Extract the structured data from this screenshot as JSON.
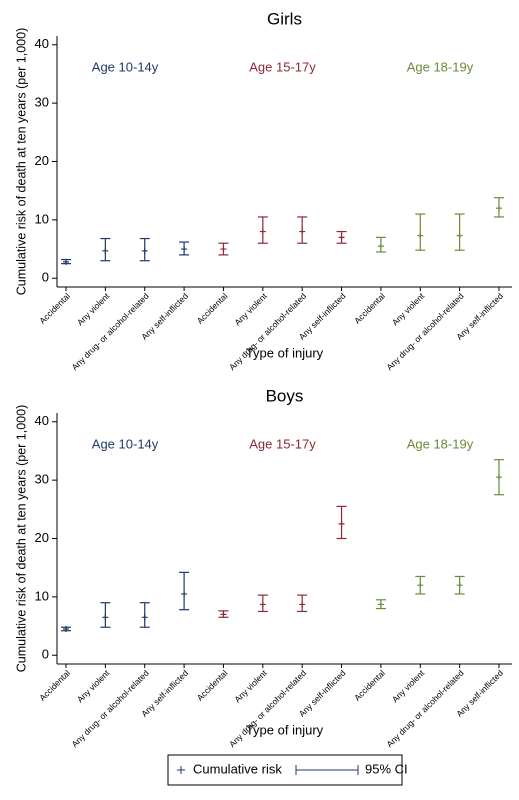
{
  "chart_data": [
    {
      "type": "errorbar",
      "title": "Girls",
      "x_label": "Type of injury",
      "y_label": "Cumulative risk of death at ten years (per 1,000)",
      "categories": [
        "Accidental",
        "Any violent",
        "Any drug- or alcohol-related",
        "Any self-inflicted",
        "Accidental",
        "Any violent",
        "Any drug- or alcohol-related",
        "Any self-inflicted",
        "Accidental",
        "Any violent",
        "Any drug- or alcohol-related",
        "Any self-inflicted"
      ],
      "ylim": [
        -1.5,
        41.5
      ],
      "yticks": [
        0,
        10,
        20,
        30,
        40
      ],
      "series": [
        {
          "name": "Age 10-14y",
          "color": "#1f3a68",
          "values": [
            2.8,
            4.7,
            4.7,
            5,
            null,
            null,
            null,
            null,
            null,
            null,
            null,
            null
          ],
          "lower": [
            2.5,
            3,
            3,
            4,
            null,
            null,
            null,
            null,
            null,
            null,
            null,
            null
          ],
          "upper": [
            3.2,
            6.8,
            6.8,
            6.2,
            null,
            null,
            null,
            null,
            null,
            null,
            null,
            null
          ]
        },
        {
          "name": "Age 15-17y",
          "color": "#8b2a35",
          "values": [
            null,
            null,
            null,
            null,
            5,
            8,
            8,
            7,
            null,
            null,
            null,
            null
          ],
          "lower": [
            null,
            null,
            null,
            null,
            4,
            6,
            6,
            6,
            null,
            null,
            null,
            null
          ],
          "upper": [
            null,
            null,
            null,
            null,
            6,
            10.5,
            10.5,
            8,
            null,
            null,
            null,
            null
          ]
        },
        {
          "name": "Age 18-19y",
          "color": "#6a8a3a",
          "values": [
            null,
            null,
            null,
            null,
            null,
            null,
            null,
            null,
            5.5,
            7.3,
            7.3,
            12
          ],
          "lower": [
            null,
            null,
            null,
            null,
            null,
            null,
            null,
            null,
            4.5,
            4.8,
            4.8,
            10.5
          ],
          "upper": [
            null,
            null,
            null,
            null,
            null,
            null,
            null,
            null,
            7,
            11,
            11,
            13.8
          ]
        }
      ]
    },
    {
      "type": "errorbar",
      "title": "Boys",
      "x_label": "Type of injury",
      "y_label": "Cumulative risk of death at ten years (per 1,000)",
      "categories": [
        "Accidental",
        "Any violent",
        "Any drug- or alcohol-related",
        "Any self-inflicted",
        "Accidental",
        "Any violent",
        "Any drug- or alcohol-related",
        "Any self-inflicted",
        "Accidental",
        "Any violent",
        "Any drug- or alcohol-related",
        "Any self-inflicted"
      ],
      "ylim": [
        -1.5,
        41.5
      ],
      "yticks": [
        0,
        10,
        20,
        30,
        40
      ],
      "series": [
        {
          "name": "Age 10-14y",
          "color": "#1f3a68",
          "values": [
            4.5,
            6.5,
            6.5,
            10.5,
            null,
            null,
            null,
            null,
            null,
            null,
            null,
            null
          ],
          "lower": [
            4.2,
            4.8,
            4.8,
            7.8,
            null,
            null,
            null,
            null,
            null,
            null,
            null,
            null
          ],
          "upper": [
            4.8,
            9,
            9,
            14.2,
            null,
            null,
            null,
            null,
            null,
            null,
            null,
            null
          ]
        },
        {
          "name": "Age 15-17y",
          "color": "#8b2a35",
          "values": [
            null,
            null,
            null,
            null,
            7,
            8.7,
            8.7,
            22.5,
            null,
            null,
            null,
            null
          ],
          "lower": [
            null,
            null,
            null,
            null,
            6.5,
            7.5,
            7.5,
            20,
            null,
            null,
            null,
            null
          ],
          "upper": [
            null,
            null,
            null,
            null,
            7.6,
            10.3,
            10.3,
            25.5,
            null,
            null,
            null,
            null
          ]
        },
        {
          "name": "Age 18-19y",
          "color": "#6a8a3a",
          "values": [
            null,
            null,
            null,
            null,
            null,
            null,
            null,
            null,
            8.7,
            12,
            12,
            30.5
          ],
          "lower": [
            null,
            null,
            null,
            null,
            null,
            null,
            null,
            null,
            8,
            10.5,
            10.5,
            27.5
          ],
          "upper": [
            null,
            null,
            null,
            null,
            null,
            null,
            null,
            null,
            9.5,
            13.5,
            13.5,
            33.5
          ]
        }
      ]
    }
  ],
  "legend": [
    "Cumulative risk",
    "95% CI"
  ]
}
